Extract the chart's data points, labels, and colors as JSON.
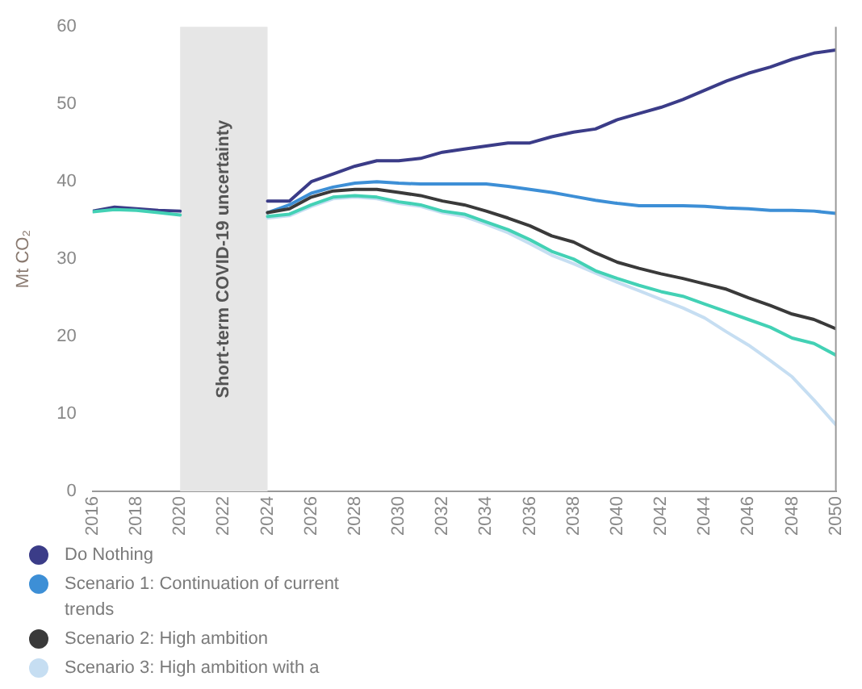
{
  "chart_data": {
    "type": "line",
    "ylabel": "Mt CO₂",
    "x": [
      2016,
      2017,
      2018,
      2019,
      2020,
      2021,
      2022,
      2023,
      2024,
      2025,
      2026,
      2027,
      2028,
      2029,
      2030,
      2031,
      2032,
      2033,
      2034,
      2035,
      2036,
      2037,
      2038,
      2039,
      2040,
      2041,
      2042,
      2043,
      2044,
      2045,
      2046,
      2047,
      2048,
      2049,
      2050
    ],
    "series": [
      {
        "name": "Do Nothing",
        "color": "#3b3c88",
        "values": [
          36.2,
          36.7,
          36.5,
          36.3,
          36.2,
          null,
          null,
          null,
          37.5,
          37.5,
          40,
          41,
          42,
          42.7,
          42.7,
          43,
          43.8,
          44.2,
          44.6,
          45,
          45,
          45.8,
          46.4,
          46.8,
          48,
          48.8,
          49.6,
          50.6,
          51.8,
          53,
          54,
          54.8,
          55.8,
          56.6,
          57
        ]
      },
      {
        "name": "Scenario 1: Continuation of current trends",
        "color": "#3d8fd6",
        "values": [
          null,
          null,
          null,
          null,
          null,
          null,
          null,
          null,
          36,
          37,
          38.5,
          39.3,
          39.8,
          40,
          39.8,
          39.7,
          39.7,
          39.7,
          39.7,
          39.4,
          39,
          38.6,
          38.1,
          37.6,
          37.2,
          36.9,
          36.9,
          36.9,
          36.8,
          36.6,
          36.5,
          36.3,
          36.3,
          36.2,
          35.9
        ]
      },
      {
        "name": "Scenario 2: High ambition",
        "color": "#3a3a3a",
        "values": [
          null,
          null,
          null,
          null,
          null,
          null,
          null,
          null,
          36,
          36.5,
          38,
          38.8,
          39,
          39,
          38.6,
          38.2,
          37.5,
          37,
          36.2,
          35.3,
          34.3,
          33,
          32.2,
          30.8,
          29.6,
          28.8,
          28.1,
          27.5,
          26.8,
          26.1,
          25,
          24,
          22.9,
          22.2,
          21
        ]
      },
      {
        "name": "Scenario 3: High ambition with a",
        "color": "#c6def2",
        "values": [
          null,
          null,
          null,
          null,
          null,
          null,
          null,
          null,
          35.3,
          35.6,
          36.8,
          37.8,
          38,
          37.8,
          37.2,
          36.8,
          36,
          35.5,
          34.5,
          33.4,
          32,
          30.5,
          29.4,
          28.2,
          27,
          25.9,
          24.8,
          23.7,
          22.4,
          20.6,
          18.9,
          16.9,
          14.8,
          11.8,
          8.6
        ]
      },
      {
        "color": "#43d1b5",
        "values": [
          36.1,
          36.4,
          36.3,
          36,
          35.7,
          null,
          null,
          null,
          35.5,
          35.8,
          37,
          38,
          38.2,
          38,
          37.4,
          37,
          36.2,
          35.8,
          34.8,
          33.8,
          32.5,
          31,
          30,
          28.5,
          27.5,
          26.6,
          25.8,
          25.2,
          24.2,
          23.2,
          22.2,
          21.2,
          19.8,
          19.1,
          17.6
        ]
      }
    ],
    "xlim": [
      2016,
      2050
    ],
    "xticks": [
      2016,
      2018,
      2020,
      2022,
      2024,
      2026,
      2028,
      2030,
      2032,
      2034,
      2036,
      2038,
      2040,
      2042,
      2044,
      2046,
      2048,
      2050
    ],
    "ylim": [
      0,
      60
    ],
    "yticks": [
      0,
      10,
      20,
      30,
      40,
      50,
      60
    ],
    "bands": [
      {
        "axis": "x",
        "from": 2020,
        "to": 2024,
        "label": "Short-term COVID-19 uncertainty",
        "color": "#e6e6e6"
      }
    ],
    "grid": false,
    "legend": "bottom left",
    "marker": "none",
    "line_style": "solid"
  }
}
